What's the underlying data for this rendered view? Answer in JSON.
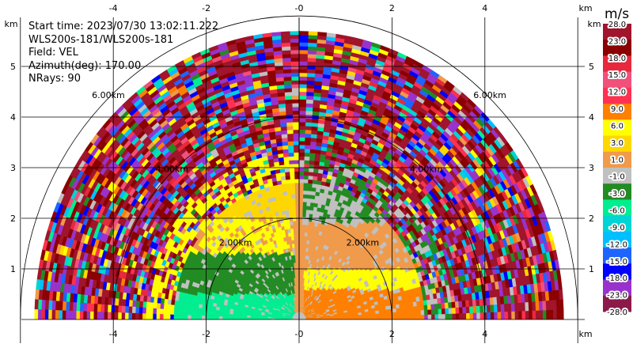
{
  "info": {
    "start_time": "Start time: 2023/07/30 13:02:11.222",
    "instrument": "WLS200s-181/WLS200s-181",
    "field": "Field: VEL",
    "azimuth": "Azimuth(deg): 170.00",
    "nrays": "NRays: 90"
  },
  "chart_data": {
    "type": "heatmap",
    "projection": "polar-rhi-half-disc",
    "title": "",
    "x_unit_label": "km",
    "y_unit_label": "km",
    "x_ticks": [
      -4,
      -2,
      0,
      2,
      4
    ],
    "x_tick_labels": [
      "-4",
      "-2",
      "-0",
      "2",
      "4"
    ],
    "y_ticks": [
      1,
      2,
      3,
      4,
      5
    ],
    "y_tick_labels": [
      "1",
      "2",
      "3",
      "4",
      "5"
    ],
    "xlim": [
      -6,
      6
    ],
    "ylim": [
      0,
      5.9
    ],
    "max_range_km": 5.7,
    "grid": true,
    "range_rings_km": [
      2,
      4,
      6
    ],
    "range_ring_labels": [
      "2.00km",
      "4.00km",
      "6.00km"
    ],
    "colorbar": {
      "title": "m/s",
      "position": "right",
      "bounds": [
        28.0,
        23.0,
        18.0,
        15.0,
        12.0,
        9.0,
        6.0,
        3.0,
        1.0,
        -1.0,
        -3.0,
        -6.0,
        -9.0,
        -12.0,
        -15.0,
        -18.0,
        -23.0,
        -28.0
      ],
      "labels": [
        "28.0",
        "23.0",
        "18.0",
        "15.0",
        "12.0",
        "9.0",
        "6.0",
        "3.0",
        "1.0",
        "-1.0",
        "-3.0",
        "-6.0",
        "-9.0",
        "-12.0",
        "-15.0",
        "-18.0",
        "-23.0",
        "-28.0"
      ],
      "colors": [
        "#a0142c",
        "#8b0000",
        "#e8283c",
        "#f0507a",
        "#ff3050",
        "#ff7f00",
        "#ffff00",
        "#ffd700",
        "#f09a4a",
        "#c0c0c0",
        "#228b22",
        "#00ee90",
        "#00d4d4",
        "#00bfff",
        "#1e64ff",
        "#0000ff",
        "#9932cc",
        "#8b1a4a"
      ]
    },
    "velocity_summary": [
      {
        "region": "near-left-low",
        "velocity_ms": -8.0
      },
      {
        "region": "near-left-mid",
        "velocity_ms": -4.0
      },
      {
        "region": "near-center-upper",
        "velocity_ms": -2.0
      },
      {
        "region": "near-right-low",
        "velocity_ms": 7.0
      },
      {
        "region": "near-right-mid",
        "velocity_ms": 2.0
      },
      {
        "region": "far-ranges",
        "velocity_ms": null
      }
    ]
  }
}
